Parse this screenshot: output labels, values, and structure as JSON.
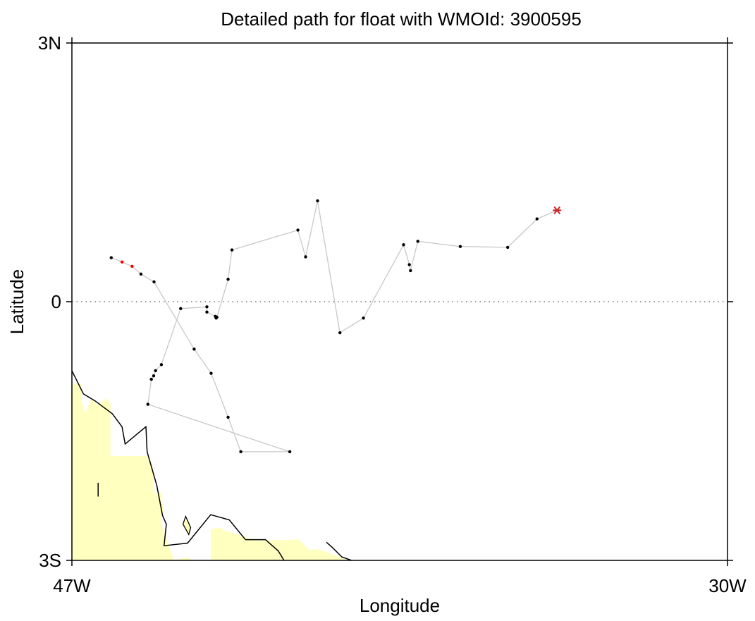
{
  "chart_data": {
    "type": "scatter",
    "title": "Detailed path for float with WMOId: 3900595",
    "xlabel": "Longitude",
    "ylabel": "Latitude",
    "xlim": [
      -47,
      -30
    ],
    "ylim": [
      -3,
      3
    ],
    "x_ticks": [
      {
        "value": -47,
        "label": "47W"
      },
      {
        "value": -30,
        "label": "30W"
      }
    ],
    "y_ticks": [
      {
        "value": 3,
        "label": "3N"
      },
      {
        "value": 0,
        "label": "0"
      },
      {
        "value": -3,
        "label": "3S"
      }
    ],
    "reference_line": {
      "lat": 0,
      "style": "dotted"
    },
    "grid": false,
    "colors": {
      "path": "#c8c8c8",
      "point": "#000000",
      "highlight": "#ff0000",
      "marker": "#cc2222",
      "land_fill": "#ffffc0",
      "coast": "#000000"
    },
    "path": [
      {
        "lon": -34.42,
        "lat": 1.06,
        "marker": "star"
      },
      {
        "lon": -34.94,
        "lat": 0.96
      },
      {
        "lon": -35.7,
        "lat": 0.63
      },
      {
        "lon": -36.93,
        "lat": 0.64
      },
      {
        "lon": -38.03,
        "lat": 0.7
      },
      {
        "lon": -38.22,
        "lat": 0.36
      },
      {
        "lon": -38.25,
        "lat": 0.43
      },
      {
        "lon": -38.4,
        "lat": 0.66
      },
      {
        "lon": -39.44,
        "lat": -0.19
      },
      {
        "lon": -40.05,
        "lat": -0.36
      },
      {
        "lon": -40.63,
        "lat": 1.17
      },
      {
        "lon": -40.94,
        "lat": 0.52
      },
      {
        "lon": -41.14,
        "lat": 0.83
      },
      {
        "lon": -42.85,
        "lat": 0.6
      },
      {
        "lon": -42.95,
        "lat": 0.26
      },
      {
        "lon": -43.24,
        "lat": -0.18
      },
      {
        "lon": -43.26,
        "lat": -0.19
      },
      {
        "lon": -43.28,
        "lat": -0.17
      },
      {
        "lon": -43.5,
        "lat": -0.12
      },
      {
        "lon": -43.5,
        "lat": -0.06
      },
      {
        "lon": -44.18,
        "lat": -0.08
      },
      {
        "lon": -44.68,
        "lat": -0.73
      },
      {
        "lon": -44.83,
        "lat": -0.8
      },
      {
        "lon": -44.88,
        "lat": -0.86
      },
      {
        "lon": -44.94,
        "lat": -0.9
      },
      {
        "lon": -45.03,
        "lat": -1.19
      },
      {
        "lon": -41.35,
        "lat": -1.74
      },
      {
        "lon": -42.62,
        "lat": -1.74
      },
      {
        "lon": -42.95,
        "lat": -1.34
      },
      {
        "lon": -43.39,
        "lat": -0.83
      },
      {
        "lon": -43.83,
        "lat": -0.55
      },
      {
        "lon": -44.87,
        "lat": 0.23
      },
      {
        "lon": -45.21,
        "lat": 0.32
      },
      {
        "lon": -45.44,
        "lat": 0.41,
        "highlight": true
      },
      {
        "lon": -45.7,
        "lat": 0.46,
        "highlight": true
      },
      {
        "lon": -45.98,
        "lat": 0.51
      }
    ],
    "land": [
      {
        "fill": "#ffffc0",
        "stroke": "none",
        "lonlat": [
          [
            -47.0,
            -3.0
          ],
          [
            -47.0,
            -0.95
          ],
          [
            -46.75,
            -0.95
          ],
          [
            -46.75,
            -1.15
          ],
          [
            -46.65,
            -1.3
          ],
          [
            -46.5,
            -1.12
          ],
          [
            -46.35,
            -1.2
          ],
          [
            -46.1,
            -1.12
          ],
          [
            -46.0,
            -1.18
          ],
          [
            -46.0,
            -1.79
          ],
          [
            -45.05,
            -1.79
          ],
          [
            -44.9,
            -1.94
          ],
          [
            -44.9,
            -2.07
          ],
          [
            -44.85,
            -2.23
          ],
          [
            -44.7,
            -2.2
          ],
          [
            -44.62,
            -2.42
          ],
          [
            -44.7,
            -2.52
          ],
          [
            -44.63,
            -2.65
          ],
          [
            -44.35,
            -3.0
          ]
        ]
      },
      {
        "fill": "#ffffc0",
        "stroke": "none",
        "lonlat": [
          [
            -43.4,
            -3.0
          ],
          [
            -43.4,
            -2.64
          ],
          [
            -43.17,
            -2.62
          ],
          [
            -43.05,
            -2.65
          ],
          [
            -42.2,
            -2.77
          ],
          [
            -41.1,
            -2.76
          ],
          [
            -40.85,
            -2.88
          ],
          [
            -40.6,
            -2.87
          ],
          [
            -40.0,
            -2.97
          ],
          [
            -39.9,
            -3.0
          ]
        ]
      },
      {
        "fill": "#ffffc0",
        "stroke": "none",
        "lonlat": [
          [
            -44.35,
            -3.0
          ],
          [
            -44.0,
            -2.96
          ],
          [
            -43.9,
            -3.0
          ]
        ]
      },
      {
        "fill": "#ffffc0",
        "stroke": "#000000",
        "lonlat": [
          [
            -44.05,
            -2.49
          ],
          [
            -43.92,
            -2.62
          ],
          [
            -43.97,
            -2.7
          ],
          [
            -44.12,
            -2.58
          ]
        ]
      }
    ],
    "coast_lines": [
      {
        "lonlat": [
          [
            -47.0,
            -0.8
          ],
          [
            -46.7,
            -1.07
          ],
          [
            -46.4,
            -1.15
          ],
          [
            -45.95,
            -1.3
          ],
          [
            -45.7,
            -1.45
          ],
          [
            -45.62,
            -1.65
          ],
          [
            -45.35,
            -1.55
          ],
          [
            -45.08,
            -1.45
          ],
          [
            -45.05,
            -1.74
          ],
          [
            -44.8,
            -2.13
          ],
          [
            -44.65,
            -2.48
          ],
          [
            -44.55,
            -2.58
          ],
          [
            -44.61,
            -2.83
          ],
          [
            -44.0,
            -2.8
          ],
          [
            -43.4,
            -2.47
          ],
          [
            -42.92,
            -2.53
          ],
          [
            -42.5,
            -2.76
          ],
          [
            -41.98,
            -2.76
          ],
          [
            -41.65,
            -2.89
          ],
          [
            -41.5,
            -3.0
          ]
        ]
      },
      {
        "lonlat": [
          [
            -40.4,
            -2.79
          ],
          [
            -40.25,
            -2.85
          ],
          [
            -40.0,
            -2.96
          ],
          [
            -39.75,
            -3.0
          ]
        ]
      },
      {
        "lonlat": [
          [
            -46.32,
            -2.1
          ],
          [
            -46.32,
            -2.26
          ]
        ]
      }
    ]
  }
}
